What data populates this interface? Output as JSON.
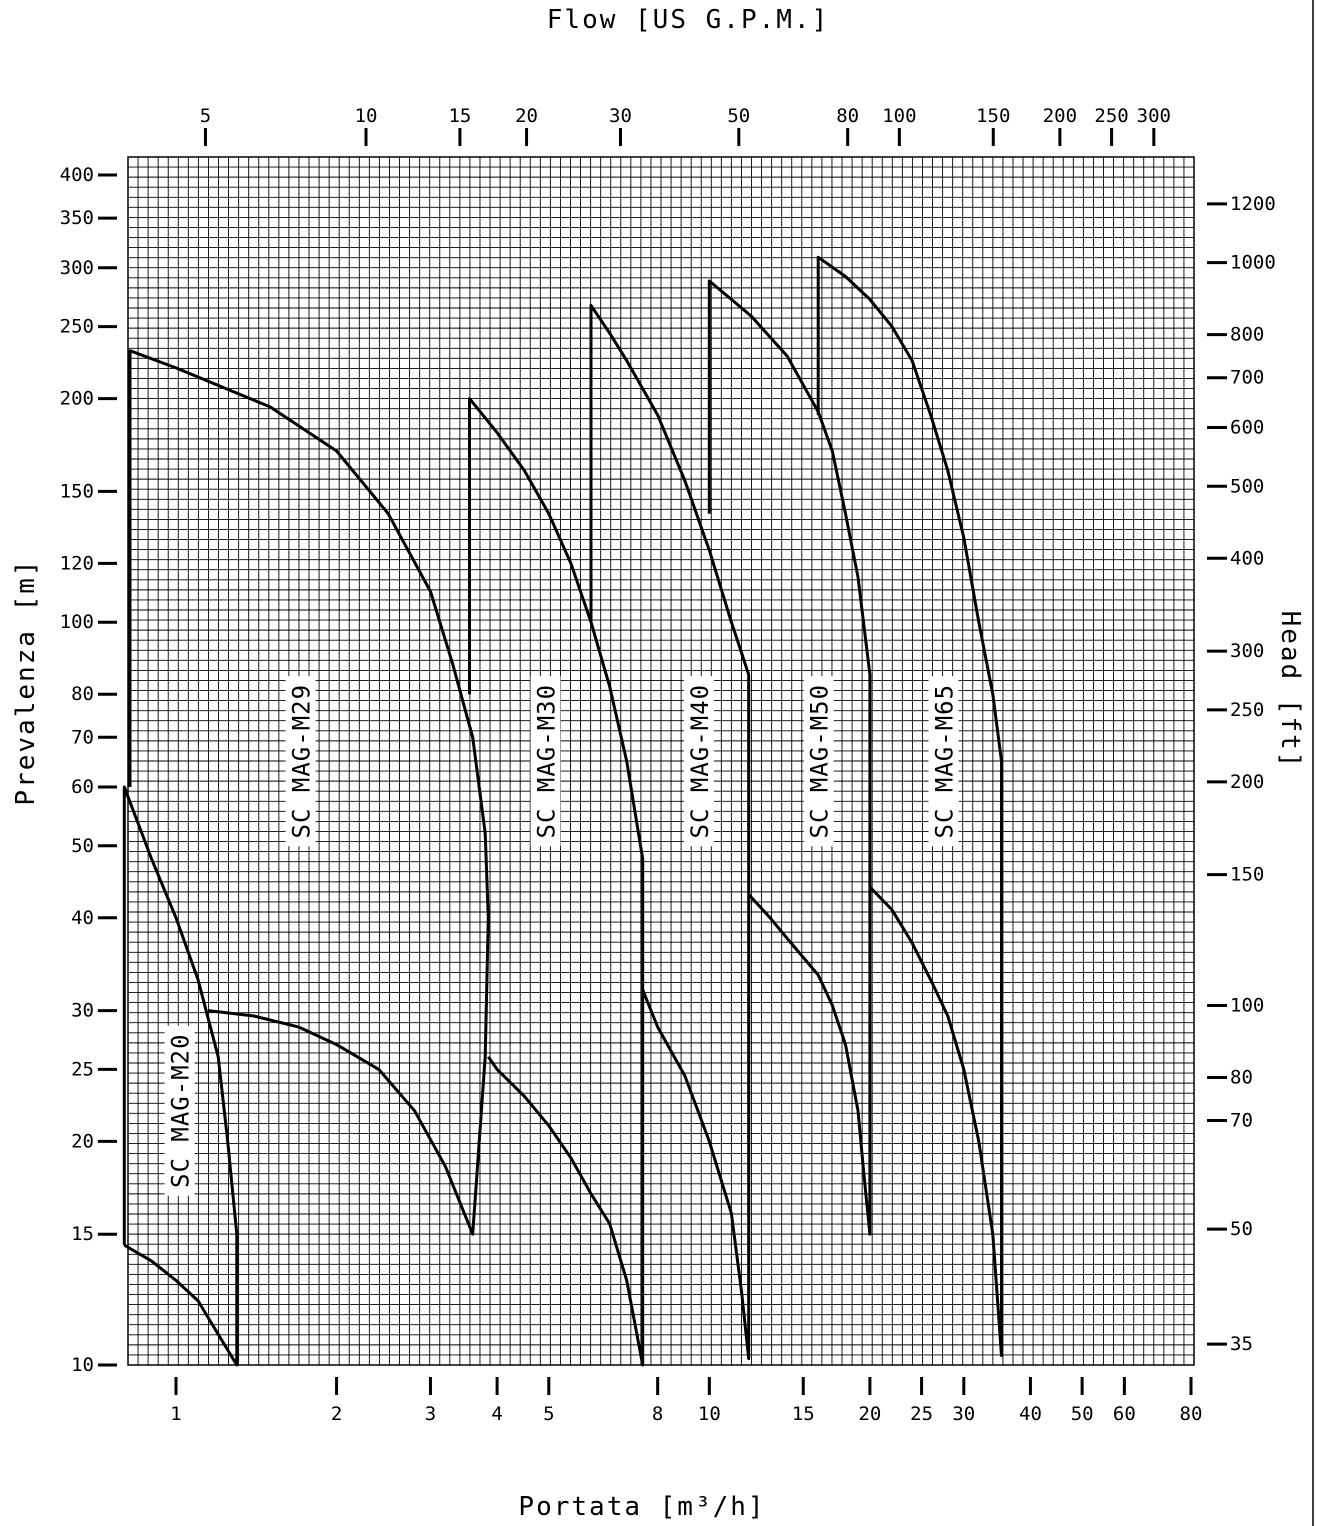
{
  "chart_data": {
    "type": "line",
    "title": "",
    "xlabel": "Portata [m³/h]",
    "x2label": "Flow [US G.P.M.]",
    "ylabel": "Prevalenza [m]",
    "y2label": "Head [ft]",
    "xscale": "log",
    "yscale": "log",
    "xlim": [
      0.74,
      80
    ],
    "ylim": [
      10,
      420
    ],
    "grid": true,
    "x_ticks": [
      {
        "value": 1,
        "label": "1"
      },
      {
        "value": 2,
        "label": "2"
      },
      {
        "value": 3,
        "label": "3"
      },
      {
        "value": 4,
        "label": "4"
      },
      {
        "value": 5,
        "label": "5"
      },
      {
        "value": 8,
        "label": "8"
      },
      {
        "value": 10,
        "label": "10"
      },
      {
        "value": 15,
        "label": "15"
      },
      {
        "value": 20,
        "label": "20"
      },
      {
        "value": 25,
        "label": "25"
      },
      {
        "value": 30,
        "label": "30"
      },
      {
        "value": 40,
        "label": "40"
      },
      {
        "value": 50,
        "label": "50"
      },
      {
        "value": 60,
        "label": "60"
      },
      {
        "value": 80,
        "label": "80"
      }
    ],
    "x2_ticks": [
      {
        "value": 5,
        "label": "5"
      },
      {
        "value": 10,
        "label": "10"
      },
      {
        "value": 15,
        "label": "15"
      },
      {
        "value": 20,
        "label": "20"
      },
      {
        "value": 30,
        "label": "30"
      },
      {
        "value": 50,
        "label": "50"
      },
      {
        "value": 80,
        "label": "80"
      },
      {
        "value": 100,
        "label": "100"
      },
      {
        "value": 150,
        "label": "150"
      },
      {
        "value": 200,
        "label": "200"
      },
      {
        "value": 250,
        "label": "250"
      },
      {
        "value": 300,
        "label": "300"
      }
    ],
    "y_ticks": [
      {
        "value": 10,
        "label": "10"
      },
      {
        "value": 15,
        "label": "15"
      },
      {
        "value": 20,
        "label": "20"
      },
      {
        "value": 25,
        "label": "25"
      },
      {
        "value": 30,
        "label": "30"
      },
      {
        "value": 40,
        "label": "40"
      },
      {
        "value": 50,
        "label": "50"
      },
      {
        "value": 60,
        "label": "60"
      },
      {
        "value": 70,
        "label": "70"
      },
      {
        "value": 80,
        "label": "80"
      },
      {
        "value": 100,
        "label": "100"
      },
      {
        "value": 120,
        "label": "120"
      },
      {
        "value": 150,
        "label": "150"
      },
      {
        "value": 200,
        "label": "200"
      },
      {
        "value": 250,
        "label": "250"
      },
      {
        "value": 300,
        "label": "300"
      },
      {
        "value": 350,
        "label": "350"
      },
      {
        "value": 400,
        "label": "400"
      }
    ],
    "y2_ticks": [
      {
        "value": 35,
        "label": "35"
      },
      {
        "value": 50,
        "label": "50"
      },
      {
        "value": 70,
        "label": "70"
      },
      {
        "value": 80,
        "label": "80"
      },
      {
        "value": 100,
        "label": "100"
      },
      {
        "value": 150,
        "label": "150"
      },
      {
        "value": 200,
        "label": "200"
      },
      {
        "value": 250,
        "label": "250"
      },
      {
        "value": 300,
        "label": "300"
      },
      {
        "value": 400,
        "label": "400"
      },
      {
        "value": 500,
        "label": "500"
      },
      {
        "value": 600,
        "label": "600"
      },
      {
        "value": 700,
        "label": "700"
      },
      {
        "value": 800,
        "label": "800"
      },
      {
        "value": 1000,
        "label": "1000"
      },
      {
        "value": 1200,
        "label": "1200"
      }
    ],
    "series": [
      {
        "name": "SC MAG-M20",
        "points": [
          [
            0.8,
            14.5
          ],
          [
            0.8,
            60
          ],
          [
            0.9,
            48
          ],
          [
            1.0,
            40
          ],
          [
            1.1,
            33
          ],
          [
            1.2,
            26
          ],
          [
            1.25,
            20
          ],
          [
            1.3,
            15
          ],
          [
            1.3,
            10
          ],
          [
            1.2,
            11
          ],
          [
            1.1,
            12.2
          ],
          [
            1.0,
            13
          ],
          [
            0.9,
            13.8
          ],
          [
            0.8,
            14.5
          ]
        ]
      },
      {
        "name": "SC MAG-M29",
        "points": [
          [
            0.82,
            60
          ],
          [
            0.82,
            232
          ],
          [
            1.0,
            220
          ],
          [
            1.5,
            195
          ],
          [
            2.0,
            170
          ],
          [
            2.5,
            140
          ],
          [
            3.0,
            110
          ],
          [
            3.3,
            88
          ],
          [
            3.6,
            70
          ],
          [
            3.8,
            52
          ],
          [
            3.85,
            40
          ],
          [
            3.8,
            26
          ],
          [
            3.6,
            15
          ],
          [
            3.2,
            18.5
          ],
          [
            2.8,
            22
          ],
          [
            2.4,
            25
          ],
          [
            2.0,
            27
          ],
          [
            1.7,
            28.5
          ],
          [
            1.4,
            29.5
          ],
          [
            1.15,
            30
          ]
        ]
      },
      {
        "name": "SC MAG-M30",
        "points": [
          [
            3.55,
            80
          ],
          [
            3.55,
            200
          ],
          [
            4.0,
            180
          ],
          [
            4.5,
            160
          ],
          [
            5.0,
            140
          ],
          [
            5.5,
            120
          ],
          [
            6.0,
            100
          ],
          [
            6.5,
            82
          ],
          [
            7.0,
            65
          ],
          [
            7.5,
            48
          ],
          [
            7.5,
            10
          ],
          [
            7.0,
            13
          ],
          [
            6.5,
            15.5
          ],
          [
            6.0,
            17
          ],
          [
            5.5,
            19
          ],
          [
            5.0,
            21
          ],
          [
            4.5,
            23
          ],
          [
            4.0,
            25
          ],
          [
            3.85,
            26
          ]
        ]
      },
      {
        "name": "SC MAG-M40",
        "points": [
          [
            6.0,
            100
          ],
          [
            6.0,
            267
          ],
          [
            6.5,
            245
          ],
          [
            7.0,
            225
          ],
          [
            8.0,
            190
          ],
          [
            9.0,
            155
          ],
          [
            10.0,
            125
          ],
          [
            11.0,
            100
          ],
          [
            11.85,
            85
          ],
          [
            11.85,
            10.2
          ],
          [
            11.5,
            12.5
          ],
          [
            11.0,
            16
          ],
          [
            10.0,
            20
          ],
          [
            9.0,
            24.5
          ],
          [
            8.0,
            28.5
          ],
          [
            7.5,
            32
          ]
        ]
      },
      {
        "name": "SC MAG-M50",
        "points": [
          [
            10.0,
            140
          ],
          [
            10.0,
            288
          ],
          [
            11.0,
            272
          ],
          [
            12.0,
            258
          ],
          [
            14.0,
            228
          ],
          [
            16.0,
            192
          ],
          [
            17.0,
            170
          ],
          [
            18.0,
            140
          ],
          [
            19.0,
            115
          ],
          [
            20.0,
            85
          ],
          [
            20.0,
            15
          ],
          [
            19.5,
            18
          ],
          [
            19.0,
            22
          ],
          [
            18.0,
            27
          ],
          [
            17.0,
            30.5
          ],
          [
            16.0,
            33.5
          ],
          [
            14.0,
            37.5
          ],
          [
            13.0,
            40
          ],
          [
            11.85,
            43
          ]
        ]
      },
      {
        "name": "SC MAG-M65",
        "points": [
          [
            16.0,
            190
          ],
          [
            16.0,
            310
          ],
          [
            18.0,
            292
          ],
          [
            20.0,
            272
          ],
          [
            22.0,
            250
          ],
          [
            24.0,
            225
          ],
          [
            26.0,
            190
          ],
          [
            28.0,
            160
          ],
          [
            30.0,
            130
          ],
          [
            32.0,
            100
          ],
          [
            34.0,
            80
          ],
          [
            35.3,
            65
          ],
          [
            35.3,
            10.3
          ],
          [
            34.0,
            15
          ],
          [
            32.0,
            20
          ],
          [
            30.0,
            25
          ],
          [
            28.0,
            29.5
          ],
          [
            26.0,
            33
          ],
          [
            24.0,
            37
          ],
          [
            22.0,
            41
          ],
          [
            20.0,
            44
          ]
        ]
      }
    ],
    "annotations": [
      {
        "text": "SC MAG-M20",
        "x": 1.02,
        "y": 22,
        "rotation": -90
      },
      {
        "text": "SC MAG-M29",
        "x": 1.72,
        "y": 65,
        "rotation": -90
      },
      {
        "text": "SC MAG-M30",
        "x": 4.95,
        "y": 65,
        "rotation": -90
      },
      {
        "text": "SC MAG-M40",
        "x": 9.6,
        "y": 65,
        "rotation": -90
      },
      {
        "text": "SC MAG-M50",
        "x": 16.1,
        "y": 65,
        "rotation": -90
      },
      {
        "text": "SC MAG-M65",
        "x": 27.6,
        "y": 65,
        "rotation": -90
      }
    ]
  }
}
